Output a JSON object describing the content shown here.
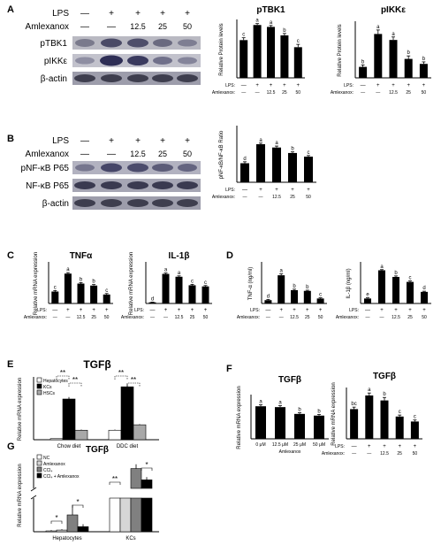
{
  "panel_letters": [
    "A",
    "B",
    "C",
    "D",
    "E",
    "F",
    "G"
  ],
  "panelA": {
    "blot_rows": {
      "lps": "LPS",
      "amlexanox": "Amlexanox",
      "bands": [
        "pTBK1",
        "pIKKε",
        "β-actin"
      ]
    },
    "lanes": {
      "lps": [
        "—",
        "+",
        "+",
        "+",
        "+"
      ],
      "aml": [
        "—",
        "—",
        "12.5",
        "25",
        "50"
      ]
    }
  },
  "panelB": {
    "blot_rows": {
      "lps": "LPS",
      "amlexanox": "Amlexanox",
      "bands": [
        "pNF-κB P65",
        "NF-κB P65",
        "β-actin"
      ]
    },
    "lanes": {
      "lps": [
        "—",
        "+",
        "+",
        "+",
        "+"
      ],
      "aml": [
        "—",
        "—",
        "12.5",
        "25",
        "50"
      ]
    }
  },
  "axis_text": {
    "lps": "LPS:",
    "amlexanox": "Amlexanox:",
    "amlexanox_plain": "Amlexanox",
    "rel_protein": "Relative Protein levels",
    "pnfkb_ratio": "pNF-κB/NF-κB Ratio",
    "rel_mrna": "Relative mRNA expression",
    "tnf_elisa": "TNF-α (ng/ml)",
    "il1_elisa": "IL-1β (ng/ml)"
  },
  "chart_data": [
    {
      "id": "A1",
      "type": "bar",
      "title": "pTBK1",
      "ylabel": "Relative Protein levels",
      "ylim": [
        0,
        1.2
      ],
      "lps": [
        "—",
        "+",
        "+",
        "+",
        "+"
      ],
      "amlexanox": [
        "—",
        "—",
        "12.5",
        "25",
        "50"
      ],
      "values": [
        0.8,
        1.12,
        1.08,
        0.9,
        0.65
      ],
      "errors": [
        0.05,
        0.03,
        0.03,
        0.04,
        0.06
      ],
      "letters": [
        "c",
        "a",
        "a",
        "b",
        "c"
      ]
    },
    {
      "id": "A2",
      "type": "bar",
      "title": "pIKKε",
      "ylabel": "Relative Protein levels",
      "ylim": [
        0,
        5.5
      ],
      "lps": [
        "—",
        "+",
        "+",
        "+",
        "+"
      ],
      "amlexanox": [
        "—",
        "—",
        "12.5",
        "25",
        "50"
      ],
      "values": [
        1.1,
        4.4,
        3.8,
        1.9,
        1.4
      ],
      "errors": [
        0.2,
        0.4,
        0.3,
        0.3,
        0.2
      ],
      "letters": [
        "b",
        "a",
        "a",
        "b",
        "b"
      ]
    },
    {
      "id": "B1",
      "type": "bar",
      "title": "",
      "ylabel": "pNF-κB/NF-κB Ratio",
      "ylim": [
        0,
        1.5
      ],
      "lps": [
        "—",
        "+",
        "+",
        "+",
        "+"
      ],
      "amlexanox": [
        "—",
        "—",
        "12.5",
        "25",
        "50"
      ],
      "values": [
        0.52,
        1.04,
        0.95,
        0.8,
        0.7
      ],
      "errors": [
        0.04,
        0.03,
        0.04,
        0.03,
        0.03
      ],
      "letters": [
        "d",
        "a",
        "a",
        "b",
        "c"
      ]
    },
    {
      "id": "C1",
      "type": "bar",
      "title": "TNFα",
      "ylabel": "Relative mRNA expression",
      "ylim": [
        0,
        2
      ],
      "lps": [
        "—",
        "+",
        "+",
        "+",
        "+"
      ],
      "amlexanox": [
        "—",
        "—",
        "12.5",
        "25",
        "50"
      ],
      "values": [
        0.6,
        1.5,
        1.0,
        0.9,
        0.45
      ],
      "errors": [
        0.05,
        0.05,
        0.05,
        0.05,
        0.05
      ],
      "letters": [
        "c",
        "a",
        "b",
        "b",
        "c"
      ]
    },
    {
      "id": "C2",
      "type": "bar",
      "title": "IL-1β",
      "ylabel": "Relative mRNA expression",
      "ylim": [
        0,
        70
      ],
      "lps": [
        "—",
        "+",
        "+",
        "+",
        "+"
      ],
      "amlexanox": [
        "—",
        "—",
        "12.5",
        "25",
        "50"
      ],
      "values": [
        2,
        52,
        47,
        32,
        30
      ],
      "errors": [
        0.5,
        1.5,
        1.5,
        1.5,
        1.5
      ],
      "letters": [
        "d",
        "a",
        "a",
        "c",
        "c"
      ]
    },
    {
      "id": "D1",
      "type": "bar",
      "title": "",
      "ylabel": "TNF-α (ng/ml)",
      "ylim": [
        0,
        1.2
      ],
      "lps": [
        "—",
        "+",
        "+",
        "+",
        "+"
      ],
      "amlexanox": [
        "—",
        "—",
        "12.5",
        "25",
        "50"
      ],
      "values": [
        0.1,
        0.85,
        0.4,
        0.38,
        0.15
      ],
      "errors": [
        0.02,
        0.04,
        0.03,
        0.02,
        0.02
      ],
      "letters": [
        "d",
        "a",
        "b",
        "b",
        "c"
      ]
    },
    {
      "id": "D2",
      "type": "bar",
      "title": "",
      "ylabel": "IL-1β (ng/ml)",
      "ylim": [
        0,
        1.2
      ],
      "lps": [
        "—",
        "+",
        "+",
        "+",
        "+"
      ],
      "amlexanox": [
        "—",
        "—",
        "12.5",
        "25",
        "50"
      ],
      "values": [
        0.15,
        1.0,
        0.8,
        0.65,
        0.35
      ],
      "errors": [
        0.02,
        0.02,
        0.03,
        0.03,
        0.02
      ],
      "letters": [
        "e",
        "a",
        "b",
        "c",
        "d"
      ]
    },
    {
      "id": "E",
      "type": "bar",
      "title": "TGFβ",
      "ylabel": "Relative mRNA expression",
      "ylim": [
        0,
        4.5
      ],
      "categories": [
        "Chow diet",
        "DDC diet"
      ],
      "series": [
        {
          "name": "Hepatocytes",
          "values": [
            0.08,
            0.7
          ],
          "errors": [
            0.02,
            0.05
          ]
        },
        {
          "name": "KCs",
          "values": [
            3.0,
            3.9
          ],
          "errors": [
            0.15,
            0.2
          ]
        },
        {
          "name": "HSCs",
          "values": [
            0.7,
            1.1
          ],
          "errors": [
            0.05,
            0.05
          ]
        }
      ],
      "legend": "top-left",
      "significance": [
        "**",
        "**",
        "**",
        "**"
      ]
    },
    {
      "id": "F1",
      "type": "bar",
      "title": "TGFβ",
      "ylabel": "Relative mRNA expression",
      "ylim": [
        0,
        1.5
      ],
      "categories": [
        "0 μM",
        "12.5 μM",
        "25 μM",
        "50 μM"
      ],
      "xlabel": "Amlexanox",
      "values": [
        1.15,
        1.12,
        0.88,
        0.82
      ],
      "errors": [
        0.05,
        0.05,
        0.04,
        0.04
      ],
      "letters": [
        "a",
        "a",
        "b",
        "b"
      ]
    },
    {
      "id": "F2",
      "type": "bar",
      "title": "TGFβ",
      "ylabel": "Relative mRNA expression",
      "ylim": [
        0,
        2
      ],
      "lps": [
        "—",
        "+",
        "+",
        "+",
        "+"
      ],
      "amlexanox": [
        "—",
        "—",
        "12.5",
        "25",
        "50"
      ],
      "values": [
        1.2,
        1.75,
        1.55,
        0.9,
        0.7
      ],
      "errors": [
        0.08,
        0.1,
        0.12,
        0.06,
        0.06
      ],
      "letters": [
        "bc",
        "a",
        "b",
        "c",
        "c"
      ]
    },
    {
      "id": "G",
      "type": "bar",
      "title": "TGFβ",
      "ylabel": "Relative mRNA expression",
      "axis_break": {
        "lower": [
          0,
          4
        ],
        "upper": [
          20,
          30
        ]
      },
      "categories": [
        "Hepatocytes",
        "KCs"
      ],
      "series": [
        {
          "name": "NC",
          "values": [
            0.1,
            4.5
          ],
          "errors": [
            0.1,
            3
          ]
        },
        {
          "name": "Amlexanox",
          "values": [
            0.2,
            5
          ],
          "errors": [
            0.1,
            3
          ]
        },
        {
          "name": "CCl₄",
          "values": [
            2.0,
            27
          ],
          "errors": [
            1.2,
            1.5
          ]
        },
        {
          "name": "CCl₄ + Amlexanox",
          "values": [
            0.6,
            23
          ],
          "errors": [
            0.3,
            1
          ]
        }
      ],
      "legend": "top-left",
      "significance": [
        "*",
        "*",
        "**",
        "*"
      ]
    }
  ]
}
